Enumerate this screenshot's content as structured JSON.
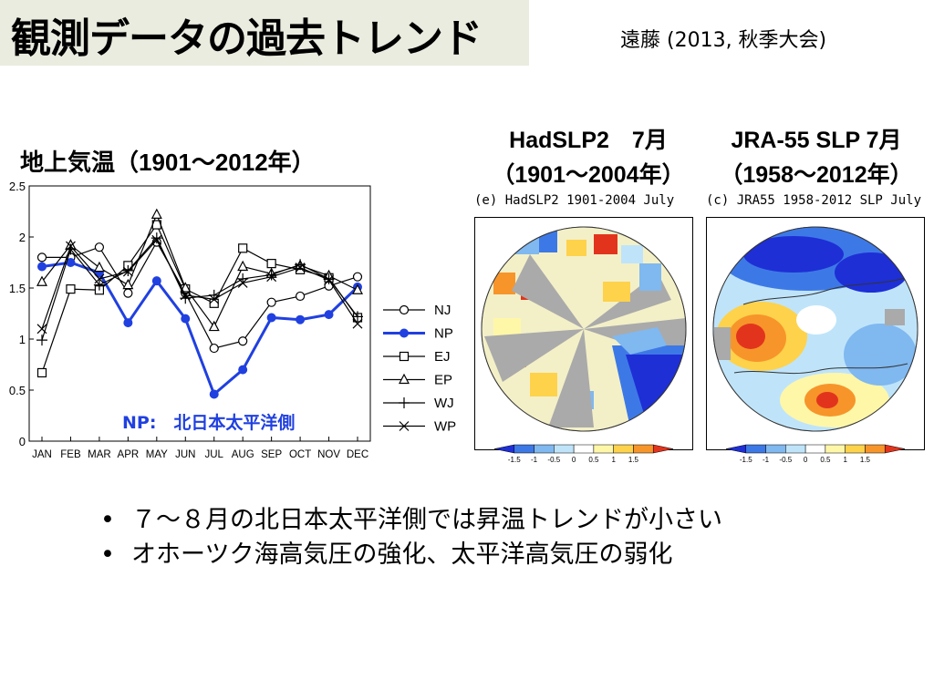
{
  "slide": {
    "title": "観測データの過去トレンド",
    "citation": "遠藤 (2013, 秋季大会)",
    "bullets": [
      "７～８月の北日本太平洋側では昇温トレンドが小さい",
      "オホーツク海高気圧の強化、太平洋高気圧の弱化"
    ]
  },
  "labels": {
    "air_temp": "地上気温（1901～2012年）",
    "had_line1": "HadSLP2　7月",
    "had_line2": "（1901～2004年）",
    "jra_line1": "JRA-55 SLP 7月",
    "jra_line2": "（1958～2012年）"
  },
  "maps": {
    "had_title": "(e) HadSLP2 1901-2004 July",
    "jra_title": "(c) JRA55 1958-2012 SLP July",
    "colorbar_ticks": [
      "-1.5",
      "-1",
      "-0.5",
      "0",
      "0.5",
      "1",
      "1.5"
    ],
    "colorbar_colors": [
      "#1e2fd6",
      "#3d79e6",
      "#80b8f0",
      "#bfe4fa",
      "#ffffff",
      "#fff7a8",
      "#fed24a",
      "#f7952a",
      "#e2341d"
    ]
  },
  "chart_data": {
    "type": "line",
    "categories": [
      "JAN",
      "FEB",
      "MAR",
      "APR",
      "MAY",
      "JUN",
      "JUL",
      "AUG",
      "SEP",
      "OCT",
      "NOV",
      "DEC"
    ],
    "ylim": [
      0,
      2.5
    ],
    "yticks": [
      "0",
      "0.5",
      "1",
      "1.5",
      "2",
      "2.5"
    ],
    "annotation": "NP:　北日本太平洋側",
    "highlight_color": "#2040e0",
    "series": [
      {
        "name": "NJ",
        "marker": "circle",
        "values": [
          1.8,
          1.8,
          1.9,
          1.45,
          1.95,
          1.45,
          0.91,
          0.98,
          1.36,
          1.42,
          1.52,
          1.61
        ]
      },
      {
        "name": "NP",
        "marker": "dot",
        "values": [
          1.71,
          1.75,
          1.65,
          1.16,
          1.57,
          1.2,
          0.46,
          0.7,
          1.21,
          1.19,
          1.24,
          1.51
        ]
      },
      {
        "name": "EJ",
        "marker": "square",
        "values": [
          0.67,
          1.49,
          1.48,
          1.72,
          2.12,
          1.49,
          1.35,
          1.89,
          1.74,
          1.68,
          1.6,
          1.21
        ]
      },
      {
        "name": "EP",
        "marker": "triangle",
        "values": [
          1.56,
          1.92,
          1.7,
          1.53,
          2.22,
          1.5,
          1.12,
          1.71,
          1.64,
          1.72,
          1.62,
          1.48
        ]
      },
      {
        "name": "WJ",
        "marker": "plus",
        "values": [
          0.99,
          1.88,
          1.53,
          1.67,
          1.99,
          1.4,
          1.43,
          1.59,
          1.63,
          1.73,
          1.59,
          1.22
        ]
      },
      {
        "name": "WP",
        "marker": "cross",
        "values": [
          1.1,
          1.91,
          1.59,
          1.66,
          1.97,
          1.43,
          1.39,
          1.55,
          1.61,
          1.7,
          1.58,
          1.15
        ]
      }
    ]
  }
}
